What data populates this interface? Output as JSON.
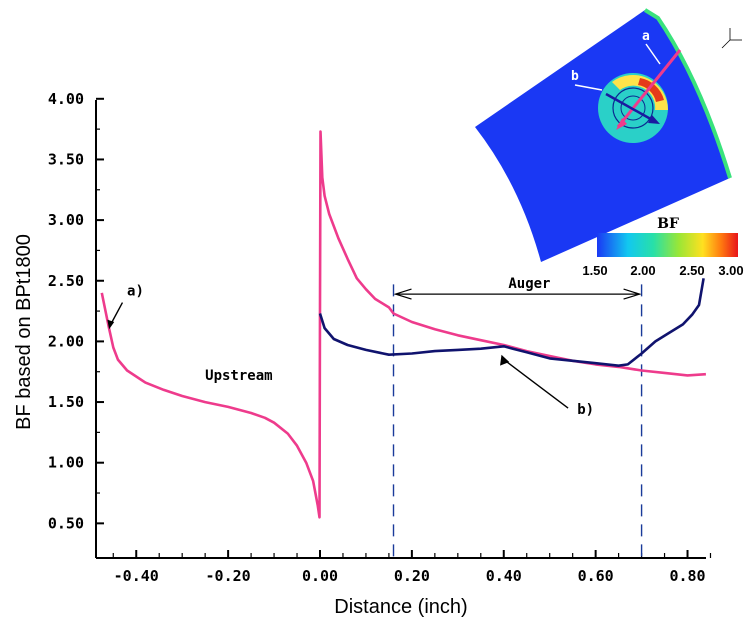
{
  "chart_data": {
    "type": "line",
    "xlabel": "Distance (inch)",
    "ylabel": "BF based on BPt1800",
    "xlim": [
      -0.5,
      0.85
    ],
    "ylim": [
      0.3,
      4.0
    ],
    "x_ticks": [
      -0.4,
      -0.2,
      0.0,
      0.2,
      0.4,
      0.6,
      0.8
    ],
    "x_tick_labels": [
      "-0.40",
      "-0.20",
      "0.00",
      "0.20",
      "0.40",
      "0.60",
      "0.80"
    ],
    "y_ticks": [
      0.5,
      1.0,
      1.5,
      2.0,
      2.5,
      3.0,
      3.5,
      4.0
    ],
    "y_tick_labels": [
      "0.50",
      "1.00",
      "1.50",
      "2.00",
      "2.50",
      "3.00",
      "3.50",
      "4.00"
    ],
    "grid": false,
    "series": [
      {
        "id": "a",
        "color": "#ee3b8c",
        "points": [
          [
            -0.475,
            2.4
          ],
          [
            -0.46,
            2.12
          ],
          [
            -0.45,
            1.95
          ],
          [
            -0.44,
            1.85
          ],
          [
            -0.42,
            1.76
          ],
          [
            -0.38,
            1.66
          ],
          [
            -0.34,
            1.6
          ],
          [
            -0.3,
            1.55
          ],
          [
            -0.25,
            1.5
          ],
          [
            -0.2,
            1.46
          ],
          [
            -0.15,
            1.41
          ],
          [
            -0.12,
            1.37
          ],
          [
            -0.1,
            1.33
          ],
          [
            -0.07,
            1.24
          ],
          [
            -0.05,
            1.14
          ],
          [
            -0.03,
            1.0
          ],
          [
            -0.015,
            0.85
          ],
          [
            -0.005,
            0.65
          ],
          [
            -0.001,
            0.55
          ],
          [
            0.0,
            2.3
          ],
          [
            0.001,
            3.73
          ],
          [
            0.005,
            3.35
          ],
          [
            0.01,
            3.2
          ],
          [
            0.02,
            3.05
          ],
          [
            0.04,
            2.85
          ],
          [
            0.06,
            2.68
          ],
          [
            0.08,
            2.52
          ],
          [
            0.1,
            2.43
          ],
          [
            0.12,
            2.35
          ],
          [
            0.15,
            2.28
          ],
          [
            0.16,
            2.23
          ],
          [
            0.2,
            2.16
          ],
          [
            0.25,
            2.1
          ],
          [
            0.3,
            2.05
          ],
          [
            0.35,
            2.01
          ],
          [
            0.4,
            1.97
          ],
          [
            0.45,
            1.92
          ],
          [
            0.5,
            1.88
          ],
          [
            0.55,
            1.84
          ],
          [
            0.6,
            1.81
          ],
          [
            0.65,
            1.79
          ],
          [
            0.7,
            1.76
          ],
          [
            0.75,
            1.74
          ],
          [
            0.8,
            1.72
          ],
          [
            0.84,
            1.73
          ]
        ]
      },
      {
        "id": "b",
        "color": "#10136e",
        "points": [
          [
            0.0,
            2.23
          ],
          [
            0.01,
            2.11
          ],
          [
            0.03,
            2.02
          ],
          [
            0.06,
            1.97
          ],
          [
            0.1,
            1.93
          ],
          [
            0.15,
            1.89
          ],
          [
            0.2,
            1.9
          ],
          [
            0.25,
            1.92
          ],
          [
            0.3,
            1.93
          ],
          [
            0.35,
            1.94
          ],
          [
            0.4,
            1.96
          ],
          [
            0.42,
            1.94
          ],
          [
            0.45,
            1.91
          ],
          [
            0.5,
            1.86
          ],
          [
            0.55,
            1.84
          ],
          [
            0.6,
            1.82
          ],
          [
            0.65,
            1.8
          ],
          [
            0.67,
            1.81
          ],
          [
            0.7,
            1.9
          ],
          [
            0.73,
            2.0
          ],
          [
            0.76,
            2.07
          ],
          [
            0.79,
            2.14
          ],
          [
            0.81,
            2.22
          ],
          [
            0.825,
            2.3
          ],
          [
            0.835,
            2.52
          ]
        ]
      }
    ],
    "annotations": [
      {
        "text": "a)",
        "x": -0.42,
        "y": 2.38
      },
      {
        "text": "Upstream",
        "x": -0.25,
        "y": 1.68
      },
      {
        "text": "Auger",
        "x": 0.41,
        "y": 2.44
      },
      {
        "text": "b)",
        "x": 0.56,
        "y": 1.4
      }
    ],
    "auger_range": [
      0.16,
      0.7
    ],
    "colorbar": {
      "title": "BF",
      "ticks": [
        "1.50",
        "2.00",
        "2.50",
        "3.00"
      ]
    },
    "inset_labels": [
      "a",
      "b"
    ]
  }
}
